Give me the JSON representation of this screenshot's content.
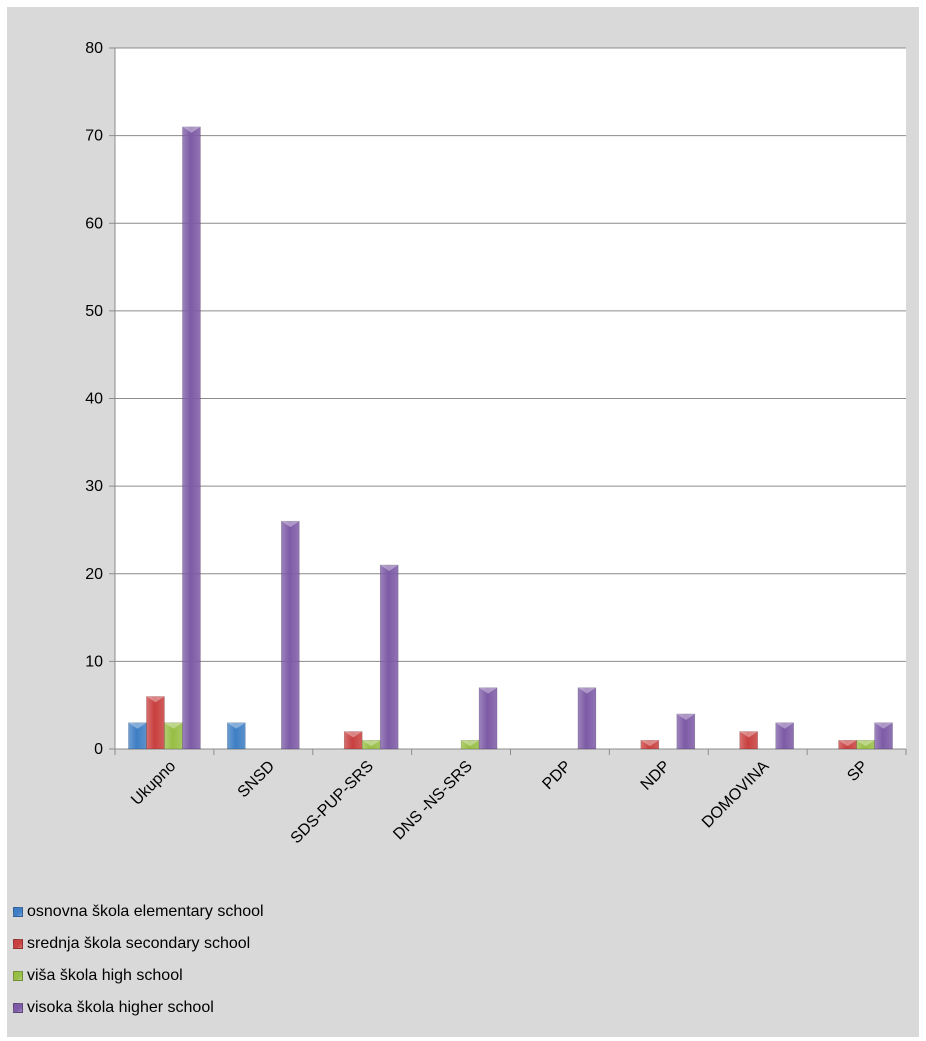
{
  "chart_data": {
    "type": "bar",
    "title": "",
    "xlabel": "",
    "ylabel": "",
    "ylim": [
      0,
      80
    ],
    "yticks": [
      0,
      10,
      20,
      30,
      40,
      50,
      60,
      70,
      80
    ],
    "grid": true,
    "legend_position": "bottom-left",
    "categories": [
      "Ukupno",
      "SNSD",
      "SDS-PUP-SRS",
      "DNS -NS-SRS",
      "PDP",
      "NDP",
      "DOMOVINA",
      "SP"
    ],
    "series": [
      {
        "name": "osnovna škola elementary school",
        "color": "#3e7ec4",
        "values": [
          3,
          3,
          0,
          0,
          0,
          0,
          0,
          0
        ]
      },
      {
        "name": "srednja škola secondary school",
        "color": "#c8403f",
        "values": [
          6,
          0,
          2,
          0,
          0,
          1,
          2,
          1
        ]
      },
      {
        "name": "viša škola high school",
        "color": "#97be45",
        "values": [
          3,
          0,
          1,
          1,
          0,
          0,
          0,
          1
        ]
      },
      {
        "name": "visoka škola higher school",
        "color": "#7d5ba6",
        "values": [
          71,
          26,
          21,
          7,
          7,
          4,
          3,
          3
        ]
      }
    ]
  }
}
